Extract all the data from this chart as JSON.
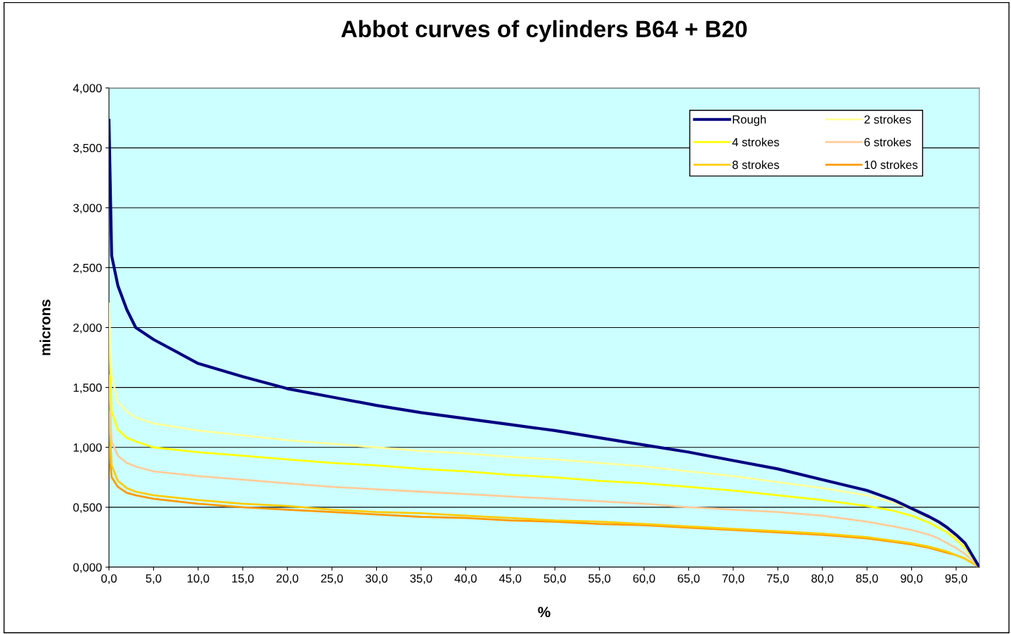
{
  "chart_data": {
    "type": "line",
    "title": "Abbot curves of cylinders B64 + B20",
    "xlabel": "%",
    "ylabel": "microns",
    "x": [
      0,
      0.3,
      1,
      2,
      3,
      5,
      10,
      15,
      20,
      25,
      30,
      35,
      40,
      45,
      50,
      55,
      60,
      65,
      70,
      75,
      80,
      85,
      88,
      90,
      92,
      93,
      94,
      95,
      96,
      97.6
    ],
    "series": [
      {
        "name": "Rough",
        "color": "#000080",
        "values": [
          3.73,
          2.6,
          2.35,
          2.15,
          2.0,
          1.9,
          1.7,
          1.59,
          1.49,
          1.42,
          1.35,
          1.29,
          1.24,
          1.19,
          1.14,
          1.08,
          1.02,
          0.96,
          0.89,
          0.82,
          0.73,
          0.64,
          0.56,
          0.49,
          0.42,
          0.38,
          0.33,
          0.27,
          0.2,
          0.0
        ]
      },
      {
        "name": "2 strokes",
        "color": "#ffff99",
        "values": [
          2.2,
          1.6,
          1.38,
          1.3,
          1.25,
          1.2,
          1.14,
          1.1,
          1.06,
          1.03,
          1.0,
          0.97,
          0.95,
          0.92,
          0.9,
          0.87,
          0.84,
          0.8,
          0.76,
          0.71,
          0.66,
          0.6,
          0.54,
          0.48,
          0.41,
          0.37,
          0.32,
          0.25,
          0.18,
          0.0
        ]
      },
      {
        "name": "4 strokes",
        "color": "#ffff00",
        "values": [
          2.0,
          1.3,
          1.15,
          1.08,
          1.05,
          1.0,
          0.96,
          0.93,
          0.9,
          0.87,
          0.85,
          0.82,
          0.8,
          0.77,
          0.75,
          0.72,
          0.7,
          0.67,
          0.64,
          0.6,
          0.56,
          0.51,
          0.47,
          0.43,
          0.37,
          0.33,
          0.29,
          0.23,
          0.16,
          0.0
        ]
      },
      {
        "name": "6 strokes",
        "color": "#ffcc99",
        "values": [
          1.6,
          1.05,
          0.93,
          0.87,
          0.84,
          0.8,
          0.76,
          0.73,
          0.7,
          0.67,
          0.65,
          0.63,
          0.61,
          0.59,
          0.57,
          0.55,
          0.53,
          0.5,
          0.48,
          0.46,
          0.43,
          0.38,
          0.34,
          0.31,
          0.27,
          0.24,
          0.2,
          0.16,
          0.11,
          0.0
        ]
      },
      {
        "name": "8 strokes",
        "color": "#ffcc00",
        "values": [
          1.3,
          0.85,
          0.72,
          0.66,
          0.63,
          0.6,
          0.56,
          0.53,
          0.51,
          0.48,
          0.46,
          0.45,
          0.43,
          0.41,
          0.39,
          0.38,
          0.36,
          0.34,
          0.32,
          0.3,
          0.28,
          0.25,
          0.22,
          0.2,
          0.17,
          0.15,
          0.13,
          0.1,
          0.07,
          0.0
        ]
      },
      {
        "name": "10 strokes",
        "color": "#ff9900",
        "values": [
          1.0,
          0.75,
          0.67,
          0.62,
          0.6,
          0.57,
          0.53,
          0.5,
          0.48,
          0.46,
          0.44,
          0.42,
          0.41,
          0.39,
          0.38,
          0.36,
          0.35,
          0.33,
          0.31,
          0.29,
          0.27,
          0.24,
          0.21,
          0.19,
          0.16,
          0.14,
          0.12,
          0.1,
          0.07,
          0.0
        ]
      }
    ],
    "xlim": [
      0,
      97.6
    ],
    "xticks": [
      {
        "value": 0,
        "label": "0,0"
      },
      {
        "value": 5,
        "label": "5,0"
      },
      {
        "value": 10,
        "label": "10,0"
      },
      {
        "value": 15,
        "label": "15,0"
      },
      {
        "value": 20,
        "label": "20,0"
      },
      {
        "value": 25,
        "label": "25,0"
      },
      {
        "value": 30,
        "label": "30,0"
      },
      {
        "value": 35,
        "label": "35,0"
      },
      {
        "value": 40,
        "label": "40,0"
      },
      {
        "value": 45,
        "label": "45,0"
      },
      {
        "value": 50,
        "label": "50,0"
      },
      {
        "value": 55,
        "label": "55,0"
      },
      {
        "value": 60,
        "label": "60,0"
      },
      {
        "value": 65,
        "label": "65,0"
      },
      {
        "value": 70,
        "label": "70,0"
      },
      {
        "value": 75,
        "label": "75,0"
      },
      {
        "value": 80,
        "label": "80,0"
      },
      {
        "value": 85,
        "label": "85,0"
      },
      {
        "value": 90,
        "label": "90,0"
      },
      {
        "value": 95,
        "label": "95,0"
      }
    ],
    "ylim": [
      0,
      4
    ],
    "yticks": [
      {
        "value": 0,
        "label": "0,000"
      },
      {
        "value": 0.5,
        "label": "0,500"
      },
      {
        "value": 1,
        "label": "1,000"
      },
      {
        "value": 1.5,
        "label": "1,500"
      },
      {
        "value": 2,
        "label": "2,000"
      },
      {
        "value": 2.5,
        "label": "2,500"
      },
      {
        "value": 3,
        "label": "3,000"
      },
      {
        "value": 3.5,
        "label": "3,500"
      },
      {
        "value": 4,
        "label": "4,000"
      }
    ],
    "grid": "y",
    "legend": "top right",
    "marker": "none",
    "line_style": "solid"
  }
}
